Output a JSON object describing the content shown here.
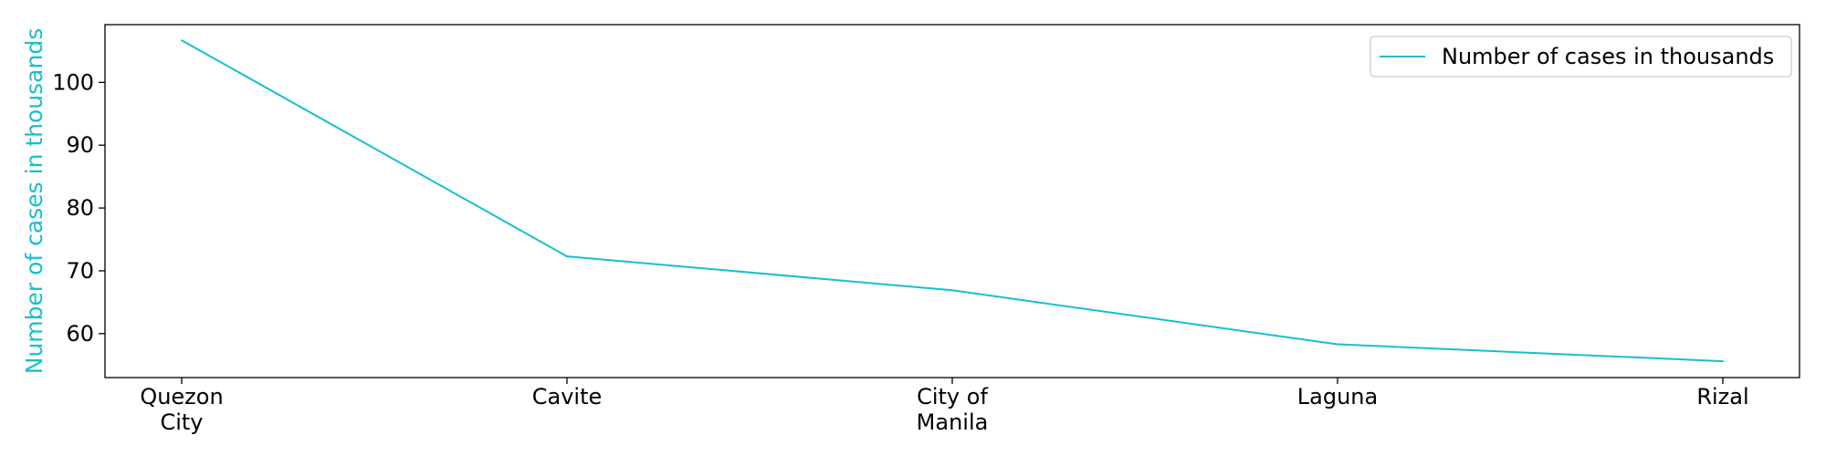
{
  "chart_data": {
    "type": "line",
    "categories": [
      "Quezon City",
      "Cavite",
      "City of Manila",
      "Laguna",
      "Rizal"
    ],
    "category_lines": [
      [
        "Quezon",
        "City"
      ],
      [
        "Cavite"
      ],
      [
        "City of",
        "Manila"
      ],
      [
        "Laguna"
      ],
      [
        "Rizal"
      ]
    ],
    "series": [
      {
        "name": "Number of cases in thousands",
        "values": [
          106.7,
          72.3,
          66.9,
          58.3,
          55.6
        ],
        "color": "#17becf"
      }
    ],
    "title": "",
    "xlabel": "",
    "ylabel": "Number of cases in thousands",
    "ylabel_color": "#17becf",
    "ylim": [
      53.0,
      109.2
    ],
    "yticks": [
      60,
      70,
      80,
      90,
      100
    ],
    "grid": false,
    "legend_position": "top-right"
  }
}
